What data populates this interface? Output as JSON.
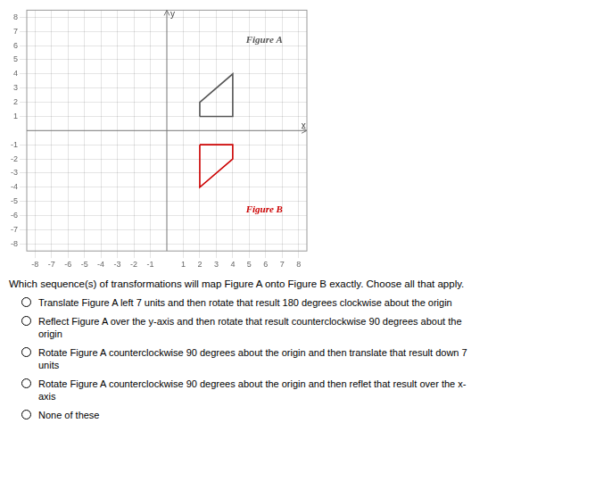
{
  "chart_data": {
    "type": "line",
    "series": [
      {
        "x": [
          2,
          2,
          4,
          4,
          2
        ],
        "values": [
          1,
          2,
          4,
          1,
          1
        ],
        "color": "#555555"
      },
      {
        "x": [
          2,
          4,
          4,
          2,
          2
        ],
        "values": [
          -1,
          -1,
          -2,
          -4,
          -1
        ],
        "color": "#cc0000"
      }
    ],
    "xlim": [
      -8.5,
      8.5
    ],
    "ylim": [
      -8.5,
      8.5
    ],
    "xticks": [
      -8,
      -7,
      -6,
      -5,
      -4,
      -3,
      -2,
      -1,
      1,
      2,
      3,
      4,
      5,
      6,
      7,
      8
    ],
    "yticks": [
      -8,
      -7,
      -6,
      -5,
      -4,
      -3,
      -2,
      -1,
      1,
      2,
      3,
      4,
      5,
      6,
      7,
      8
    ],
    "grid": true,
    "annotations": [
      {
        "text": "Figure A",
        "x": 4.8,
        "y": 6.2,
        "color": "#555555"
      },
      {
        "text": "Figure B",
        "x": 4.8,
        "y": -5.8,
        "color": "#cc0000"
      },
      {
        "text": "x",
        "x": 8.3,
        "y": 0.3
      },
      {
        "text": "y",
        "x": 0.35,
        "y": 8.2
      }
    ]
  },
  "question_text": "Which sequence(s) of transformations will map Figure A onto Figure B exactly.  Choose all that apply.",
  "options": [
    "Translate Figure A left 7 units and then rotate that result 180 degrees clockwise about the origin",
    "Reflect Figure A over the y-axis and then rotate that result counterclockwise 90 degrees about the\norigin",
    "Rotate Figure A counterclockwise 90 degrees about the origin and then translate that result down 7\nunits",
    "Rotate Figure A counterclockwise 90 degrees about the origin and then reflet that result over the x-\naxis",
    "None of these"
  ]
}
